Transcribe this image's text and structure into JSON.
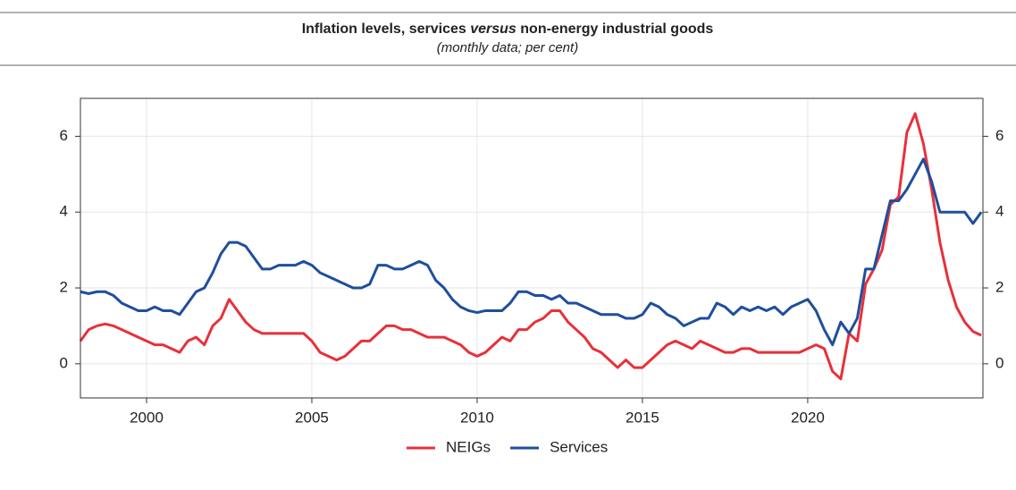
{
  "chart_data": {
    "type": "line",
    "title": [
      "Inflation levels, services",
      "versus",
      "non-energy industrial goods"
    ],
    "subtitle": "(monthly data; per cent)",
    "x": [
      1998,
      1998.25,
      1998.5,
      1998.75,
      1999,
      1999.25,
      1999.5,
      1999.75,
      2000,
      2000.25,
      2000.5,
      2000.75,
      2001,
      2001.25,
      2001.5,
      2001.75,
      2002,
      2002.25,
      2002.5,
      2002.75,
      2003,
      2003.25,
      2003.5,
      2003.75,
      2004,
      2004.25,
      2004.5,
      2004.75,
      2005,
      2005.25,
      2005.5,
      2005.75,
      2006,
      2006.25,
      2006.5,
      2006.75,
      2007,
      2007.25,
      2007.5,
      2007.75,
      2008,
      2008.25,
      2008.5,
      2008.75,
      2009,
      2009.25,
      2009.5,
      2009.75,
      2010,
      2010.25,
      2010.5,
      2010.75,
      2011,
      2011.25,
      2011.5,
      2011.75,
      2012,
      2012.25,
      2012.5,
      2012.75,
      2013,
      2013.25,
      2013.5,
      2013.75,
      2014,
      2014.25,
      2014.5,
      2014.75,
      2015,
      2015.25,
      2015.5,
      2015.75,
      2016,
      2016.25,
      2016.5,
      2016.75,
      2017,
      2017.25,
      2017.5,
      2017.75,
      2018,
      2018.25,
      2018.5,
      2018.75,
      2019,
      2019.25,
      2019.5,
      2019.75,
      2020,
      2020.25,
      2020.5,
      2020.75,
      2021,
      2021.25,
      2021.5,
      2021.75,
      2022,
      2022.25,
      2022.5,
      2022.75,
      2023,
      2023.25,
      2023.5,
      2023.75,
      2024,
      2024.25,
      2024.5,
      2024.75,
      2025,
      2025.25
    ],
    "series": [
      {
        "name": "NEIGs",
        "color": "#e8303a",
        "values": [
          0.6,
          0.9,
          1.0,
          1.05,
          1.0,
          0.9,
          0.8,
          0.7,
          0.6,
          0.5,
          0.5,
          0.4,
          0.3,
          0.6,
          0.7,
          0.5,
          1.0,
          1.2,
          1.7,
          1.4,
          1.1,
          0.9,
          0.8,
          0.8,
          0.8,
          0.8,
          0.8,
          0.8,
          0.6,
          0.3,
          0.2,
          0.1,
          0.2,
          0.4,
          0.6,
          0.6,
          0.8,
          1.0,
          1.0,
          0.9,
          0.9,
          0.8,
          0.7,
          0.7,
          0.7,
          0.6,
          0.5,
          0.3,
          0.2,
          0.3,
          0.5,
          0.7,
          0.6,
          0.9,
          0.9,
          1.1,
          1.2,
          1.4,
          1.4,
          1.1,
          0.9,
          0.7,
          0.4,
          0.3,
          0.1,
          -0.1,
          0.1,
          -0.1,
          -0.1,
          0.1,
          0.3,
          0.5,
          0.6,
          0.5,
          0.4,
          0.6,
          0.5,
          0.4,
          0.3,
          0.3,
          0.4,
          0.4,
          0.3,
          0.3,
          0.3,
          0.3,
          0.3,
          0.3,
          0.4,
          0.5,
          0.4,
          -0.2,
          -0.4,
          0.8,
          0.6,
          2.1,
          2.5,
          3.0,
          4.2,
          4.4,
          6.1,
          6.6,
          5.8,
          4.6,
          3.2,
          2.2,
          1.5,
          1.1,
          0.85,
          0.75
        ]
      },
      {
        "name": "Services",
        "color": "#1f4e9c",
        "values": [
          1.9,
          1.85,
          1.9,
          1.9,
          1.8,
          1.6,
          1.5,
          1.4,
          1.4,
          1.5,
          1.4,
          1.4,
          1.3,
          1.6,
          1.9,
          2.0,
          2.4,
          2.9,
          3.2,
          3.2,
          3.1,
          2.8,
          2.5,
          2.5,
          2.6,
          2.6,
          2.6,
          2.7,
          2.6,
          2.4,
          2.3,
          2.2,
          2.1,
          2.0,
          2.0,
          2.1,
          2.6,
          2.6,
          2.5,
          2.5,
          2.6,
          2.7,
          2.6,
          2.2,
          2.0,
          1.7,
          1.5,
          1.4,
          1.35,
          1.4,
          1.4,
          1.4,
          1.6,
          1.9,
          1.9,
          1.8,
          1.8,
          1.7,
          1.8,
          1.6,
          1.6,
          1.5,
          1.4,
          1.3,
          1.3,
          1.3,
          1.2,
          1.2,
          1.3,
          1.6,
          1.5,
          1.3,
          1.2,
          1.0,
          1.1,
          1.2,
          1.2,
          1.6,
          1.5,
          1.3,
          1.5,
          1.4,
          1.5,
          1.4,
          1.5,
          1.3,
          1.5,
          1.6,
          1.7,
          1.4,
          0.9,
          0.5,
          1.1,
          0.8,
          1.2,
          2.5,
          2.5,
          3.4,
          4.3,
          4.3,
          4.6,
          5.0,
          5.4,
          4.8,
          4.0,
          4.0,
          4.0,
          4.0,
          3.7,
          4.0
        ]
      }
    ],
    "xlim": [
      1998,
      2025.3
    ],
    "xticks": [
      2000,
      2005,
      2010,
      2015,
      2020
    ],
    "ylim": [
      -0.9,
      7
    ],
    "yticks": [
      0,
      2,
      4,
      6
    ],
    "grid": true
  }
}
